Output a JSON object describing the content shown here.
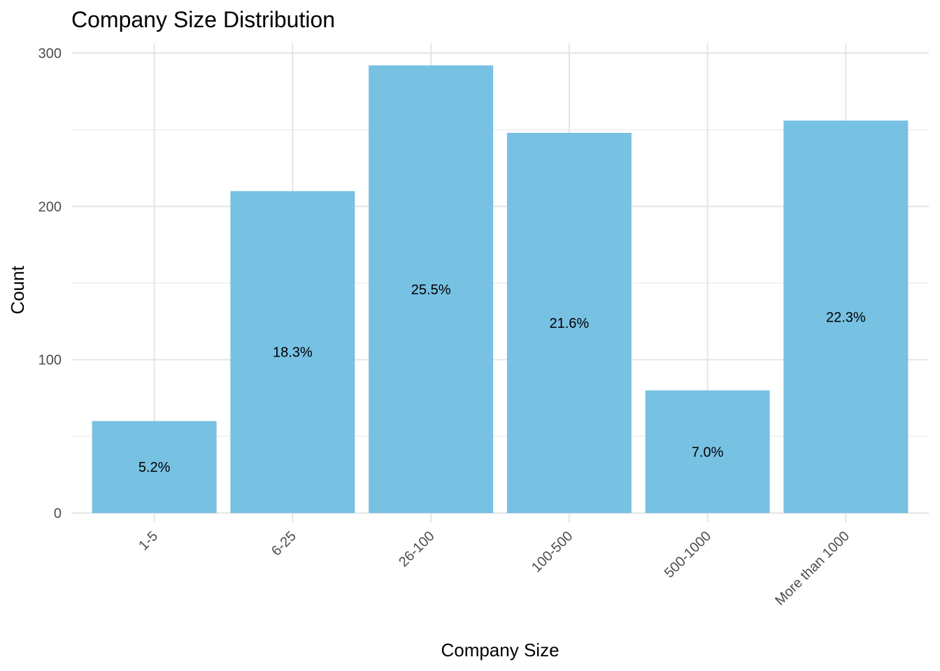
{
  "chart_data": {
    "type": "bar",
    "title": "Company Size Distribution",
    "xlabel": "Company Size",
    "ylabel": "Count",
    "categories": [
      "1-5",
      "6-25",
      "26-100",
      "100-500",
      "500-1000",
      "More than 1000"
    ],
    "values": [
      60,
      210,
      292,
      248,
      80,
      256
    ],
    "data_labels": [
      "5.2%",
      "18.3%",
      "25.5%",
      "21.6%",
      "7.0%",
      "22.3%"
    ],
    "y_ticks": [
      "0",
      "100",
      "200",
      "300"
    ],
    "y_tick_values": [
      0,
      100,
      200,
      300
    ],
    "ylim": [
      0,
      300
    ],
    "grid": true,
    "legend": "none",
    "bar_color": "#77c1e3"
  }
}
